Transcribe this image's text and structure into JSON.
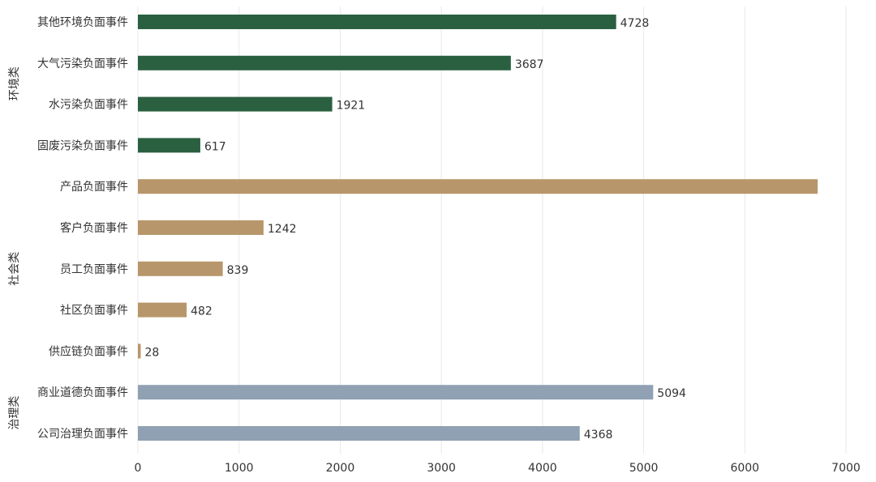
{
  "chart_data": {
    "type": "bar",
    "orientation": "horizontal",
    "groups": [
      {
        "name": "环境类",
        "color": "#2a6040",
        "categories": [
          "其他环境负面事件",
          "大气污染负面事件",
          "水污染负面事件",
          "固废污染负面事件"
        ]
      },
      {
        "name": "社会类",
        "color": "#b8966b",
        "categories": [
          "产品负面事件",
          "客户负面事件",
          "员工负面事件",
          "社区负面事件",
          "供应链负面事件"
        ]
      },
      {
        "name": "治理类",
        "color": "#8fa1b3",
        "categories": [
          "商业道德负面事件",
          "公司治理负面事件"
        ]
      }
    ],
    "categories": [
      "其他环境负面事件",
      "大气污染负面事件",
      "水污染负面事件",
      "固废污染负面事件",
      "产品负面事件",
      "客户负面事件",
      "员工负面事件",
      "社区负面事件",
      "供应链负面事件",
      "商业道德负面事件",
      "公司治理负面事件"
    ],
    "values": [
      4728,
      3687,
      1921,
      617,
      6720,
      1242,
      839,
      482,
      28,
      5094,
      4368
    ],
    "value_labels": [
      "4728",
      "3687",
      "1921",
      "617",
      "",
      "1242",
      "839",
      "482",
      "28",
      "5094",
      "4368"
    ],
    "xlim": [
      0,
      7000
    ],
    "xticks": [
      0,
      1000,
      2000,
      3000,
      4000,
      5000,
      6000,
      7000
    ],
    "xtick_labels": [
      "0",
      "1000",
      "2000",
      "3000",
      "4000",
      "5000",
      "6000",
      "7000"
    ],
    "grid": "vertical",
    "title": "",
    "xlabel": "",
    "ylabel": ""
  }
}
